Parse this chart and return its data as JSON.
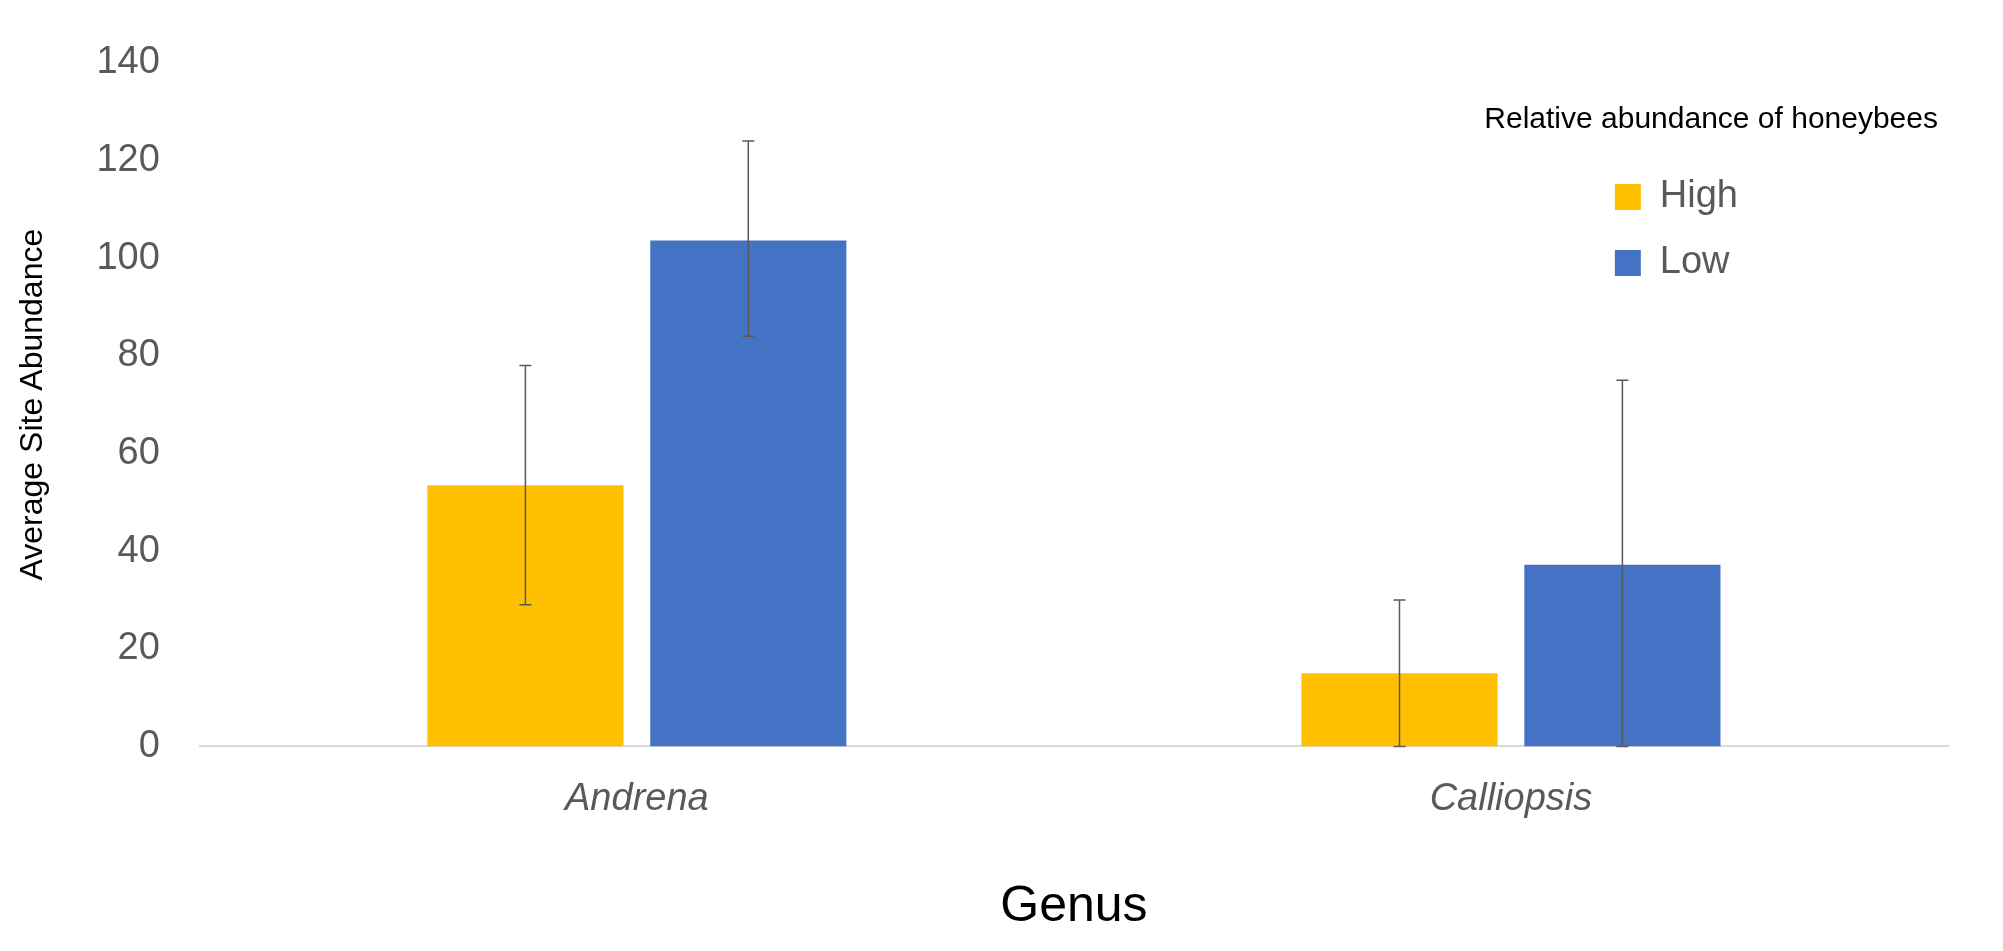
{
  "chart_data": {
    "type": "bar",
    "xlabel": "Genus",
    "ylabel": "Average Site Abundance",
    "legend_title": "Relative abundance of honeybees",
    "categories": [
      "Andrena",
      "Calliopsis"
    ],
    "series": [
      {
        "name": "High",
        "color": "#ffc000",
        "values": [
          53.5,
          15
        ],
        "errors": [
          [
            29,
            78
          ],
          [
            0,
            30
          ]
        ]
      },
      {
        "name": "Low",
        "color": "#4472c4",
        "values": [
          103.6,
          37.2
        ],
        "errors": [
          [
            84,
            124
          ],
          [
            0,
            75
          ]
        ]
      }
    ],
    "ylim": [
      0,
      140
    ],
    "yticks": [
      0,
      20,
      40,
      60,
      80,
      100,
      120,
      140
    ],
    "grid": false,
    "legend": "top right"
  }
}
